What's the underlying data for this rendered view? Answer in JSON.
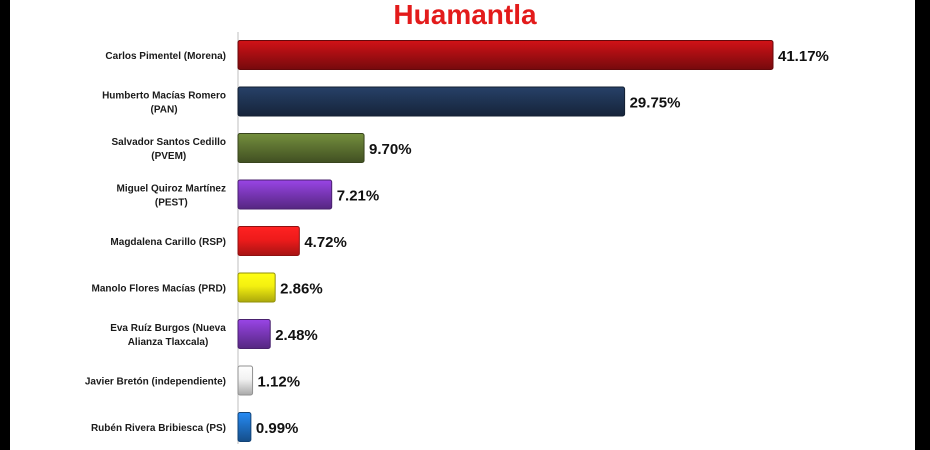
{
  "chart_data": {
    "type": "bar",
    "orientation": "horizontal",
    "title": "Huamantla",
    "xlabel": "",
    "ylabel": "",
    "xlim": [
      0,
      41.17
    ],
    "grid": false,
    "legend": "none",
    "categories": [
      [
        "Carlos Pimentel (Morena)"
      ],
      [
        "Humberto Macías Romero",
        "(PAN)"
      ],
      [
        "Salvador Santos Cedillo",
        "(PVEM)"
      ],
      [
        "Miguel Quiroz Martínez",
        "(PEST)"
      ],
      [
        "Magdalena Carillo (RSP)"
      ],
      [
        "Manolo Flores Macías (PRD)"
      ],
      [
        "Eva Ruíz Burgos (Nueva",
        "Alianza Tlaxcala)"
      ],
      [
        "Javier Bretón (independiente)"
      ],
      [
        "Rubén Rivera Bribiesca (PS)"
      ]
    ],
    "values": [
      41.17,
      29.75,
      9.7,
      7.21,
      4.72,
      2.86,
      2.48,
      1.12,
      0.99
    ],
    "value_labels": [
      "41.17%",
      "29.75%",
      "9.70%",
      "7.21%",
      "4.72%",
      "2.86%",
      "2.48%",
      "1.12%",
      "0.99%"
    ],
    "colors": [
      "#a80e12",
      "#1f3453",
      "#5d7231",
      "#7a37b8",
      "#ee1b1b",
      "#f4f010",
      "#7a37b8",
      "#f2f2f2",
      "#1e6fc4"
    ]
  }
}
